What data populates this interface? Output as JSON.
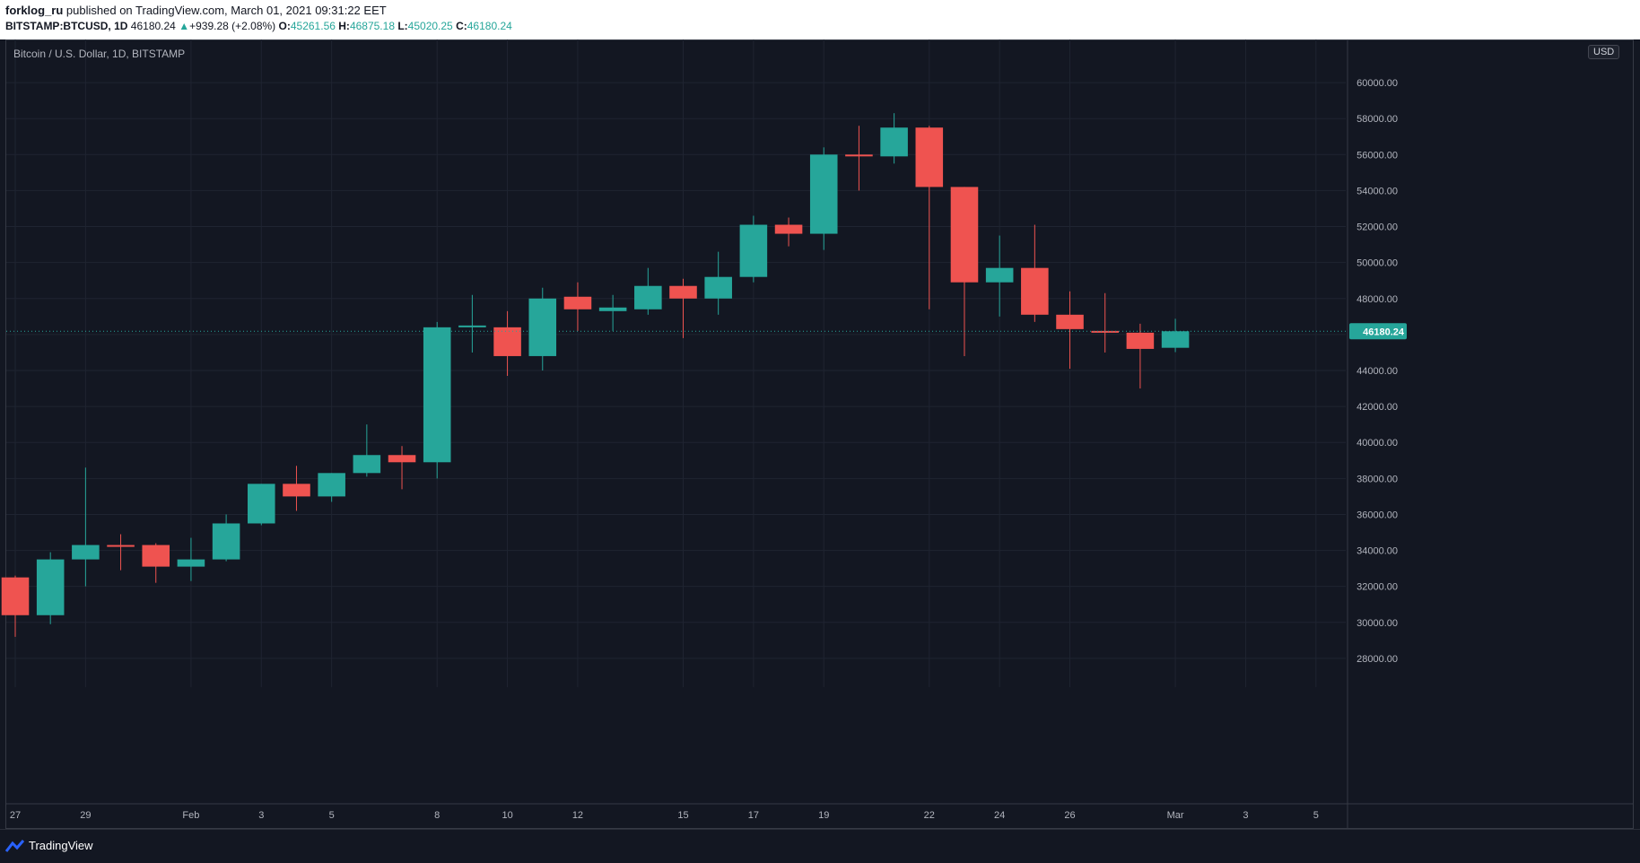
{
  "header": {
    "author": "forklog_ru",
    "published": "published on TradingView.com, March 01, 2021 09:31:22 EET",
    "symbol": "BITSTAMP:BTCUSD, 1D",
    "last": "46180.24",
    "arrow": "▲",
    "change": "+939.28 (+2.08%)",
    "o_label": "O:",
    "o_value": "45261.56",
    "h_label": "H:",
    "h_value": "46875.18",
    "l_label": "L:",
    "l_value": "45020.25",
    "c_label": "C:",
    "c_value": "46180.24"
  },
  "chart_title": "Bitcoin / U.S. Dollar, 1D, BITSTAMP",
  "currency": "USD",
  "footer": {
    "brand": "TradingView",
    "logo_icon": "tradingview-logo-icon"
  },
  "colors": {
    "up": "#26a69a",
    "down": "#ef5350",
    "background": "#131722",
    "grid": "#1f2431",
    "axis_text": "#b2b5be",
    "last_price": "#26a69a"
  },
  "chart_data": {
    "type": "candlestick",
    "title": "Bitcoin / U.S. Dollar, 1D, BITSTAMP",
    "ylim": [
      26400,
      61400
    ],
    "xlim": [
      "2021-01-27",
      "2021-03-06"
    ],
    "grid": true,
    "price_axis": "right",
    "y_ticks": [
      28000,
      30000,
      32000,
      34000,
      36000,
      38000,
      40000,
      42000,
      44000,
      46000,
      48000,
      50000,
      52000,
      54000,
      56000,
      58000,
      60000
    ],
    "x_ticks": [
      {
        "date": "2021-01-27",
        "label": "27"
      },
      {
        "date": "2021-01-29",
        "label": "29"
      },
      {
        "date": "2021-02-01",
        "label": "Feb"
      },
      {
        "date": "2021-02-03",
        "label": "3"
      },
      {
        "date": "2021-02-05",
        "label": "5"
      },
      {
        "date": "2021-02-08",
        "label": "8"
      },
      {
        "date": "2021-02-10",
        "label": "10"
      },
      {
        "date": "2021-02-12",
        "label": "12"
      },
      {
        "date": "2021-02-15",
        "label": "15"
      },
      {
        "date": "2021-02-17",
        "label": "17"
      },
      {
        "date": "2021-02-19",
        "label": "19"
      },
      {
        "date": "2021-02-22",
        "label": "22"
      },
      {
        "date": "2021-02-24",
        "label": "24"
      },
      {
        "date": "2021-02-26",
        "label": "26"
      },
      {
        "date": "2021-03-01",
        "label": "Mar"
      },
      {
        "date": "2021-03-03",
        "label": "3"
      },
      {
        "date": "2021-03-05",
        "label": "5"
      }
    ],
    "last_price": 46180.24,
    "last_price_label": "46180.24",
    "candles": [
      {
        "date": "2021-01-27",
        "open": 32500,
        "high": 32600,
        "low": 29200,
        "close": 30400
      },
      {
        "date": "2021-01-28",
        "open": 30400,
        "high": 33900,
        "low": 29900,
        "close": 33500
      },
      {
        "date": "2021-01-29",
        "open": 33500,
        "high": 38600,
        "low": 32000,
        "close": 34300
      },
      {
        "date": "2021-01-30",
        "open": 34300,
        "high": 34900,
        "low": 32900,
        "close": 34200
      },
      {
        "date": "2021-01-31",
        "open": 34300,
        "high": 34400,
        "low": 32200,
        "close": 33100
      },
      {
        "date": "2021-02-01",
        "open": 33100,
        "high": 34700,
        "low": 32300,
        "close": 33500
      },
      {
        "date": "2021-02-02",
        "open": 33500,
        "high": 36000,
        "low": 33400,
        "close": 35500
      },
      {
        "date": "2021-02-03",
        "open": 35500,
        "high": 37700,
        "low": 35400,
        "close": 37700
      },
      {
        "date": "2021-02-04",
        "open": 37700,
        "high": 38700,
        "low": 36200,
        "close": 37000
      },
      {
        "date": "2021-02-05",
        "open": 37000,
        "high": 38300,
        "low": 36700,
        "close": 38300
      },
      {
        "date": "2021-02-06",
        "open": 38300,
        "high": 41000,
        "low": 38100,
        "close": 39300
      },
      {
        "date": "2021-02-07",
        "open": 39300,
        "high": 39800,
        "low": 37400,
        "close": 38900
      },
      {
        "date": "2021-02-08",
        "open": 38900,
        "high": 46700,
        "low": 38000,
        "close": 46400
      },
      {
        "date": "2021-02-09",
        "open": 46400,
        "high": 48200,
        "low": 45000,
        "close": 46500
      },
      {
        "date": "2021-02-10",
        "open": 46400,
        "high": 47300,
        "low": 43700,
        "close": 44800
      },
      {
        "date": "2021-02-11",
        "open": 44800,
        "high": 48600,
        "low": 44000,
        "close": 48000
      },
      {
        "date": "2021-02-12",
        "open": 48100,
        "high": 48900,
        "low": 46200,
        "close": 47400
      },
      {
        "date": "2021-02-13",
        "open": 47300,
        "high": 48200,
        "low": 46200,
        "close": 47500
      },
      {
        "date": "2021-02-14",
        "open": 47400,
        "high": 49700,
        "low": 47100,
        "close": 48700
      },
      {
        "date": "2021-02-15",
        "open": 48700,
        "high": 49100,
        "low": 45800,
        "close": 48000
      },
      {
        "date": "2021-02-16",
        "open": 48000,
        "high": 50600,
        "low": 47100,
        "close": 49200
      },
      {
        "date": "2021-02-17",
        "open": 49200,
        "high": 52600,
        "low": 48900,
        "close": 52100
      },
      {
        "date": "2021-02-18",
        "open": 52100,
        "high": 52500,
        "low": 50900,
        "close": 51600
      },
      {
        "date": "2021-02-19",
        "open": 51600,
        "high": 56400,
        "low": 50700,
        "close": 56000
      },
      {
        "date": "2021-02-20",
        "open": 56000,
        "high": 57600,
        "low": 54000,
        "close": 55900
      },
      {
        "date": "2021-02-21",
        "open": 55900,
        "high": 58300,
        "low": 55500,
        "close": 57500
      },
      {
        "date": "2021-02-22",
        "open": 57500,
        "high": 57600,
        "low": 47400,
        "close": 54200
      },
      {
        "date": "2021-02-23",
        "open": 54200,
        "high": 54200,
        "low": 44800,
        "close": 48900
      },
      {
        "date": "2021-02-24",
        "open": 48900,
        "high": 51500,
        "low": 47000,
        "close": 49700
      },
      {
        "date": "2021-02-25",
        "open": 49700,
        "high": 52100,
        "low": 46700,
        "close": 47100
      },
      {
        "date": "2021-02-26",
        "open": 47100,
        "high": 48400,
        "low": 44100,
        "close": 46300
      },
      {
        "date": "2021-02-27",
        "open": 46200,
        "high": 48300,
        "low": 45000,
        "close": 46100
      },
      {
        "date": "2021-02-28",
        "open": 46100,
        "high": 46600,
        "low": 43000,
        "close": 45200
      },
      {
        "date": "2021-03-01",
        "open": 45261.56,
        "high": 46875.18,
        "low": 45020.25,
        "close": 46180.24
      }
    ]
  }
}
